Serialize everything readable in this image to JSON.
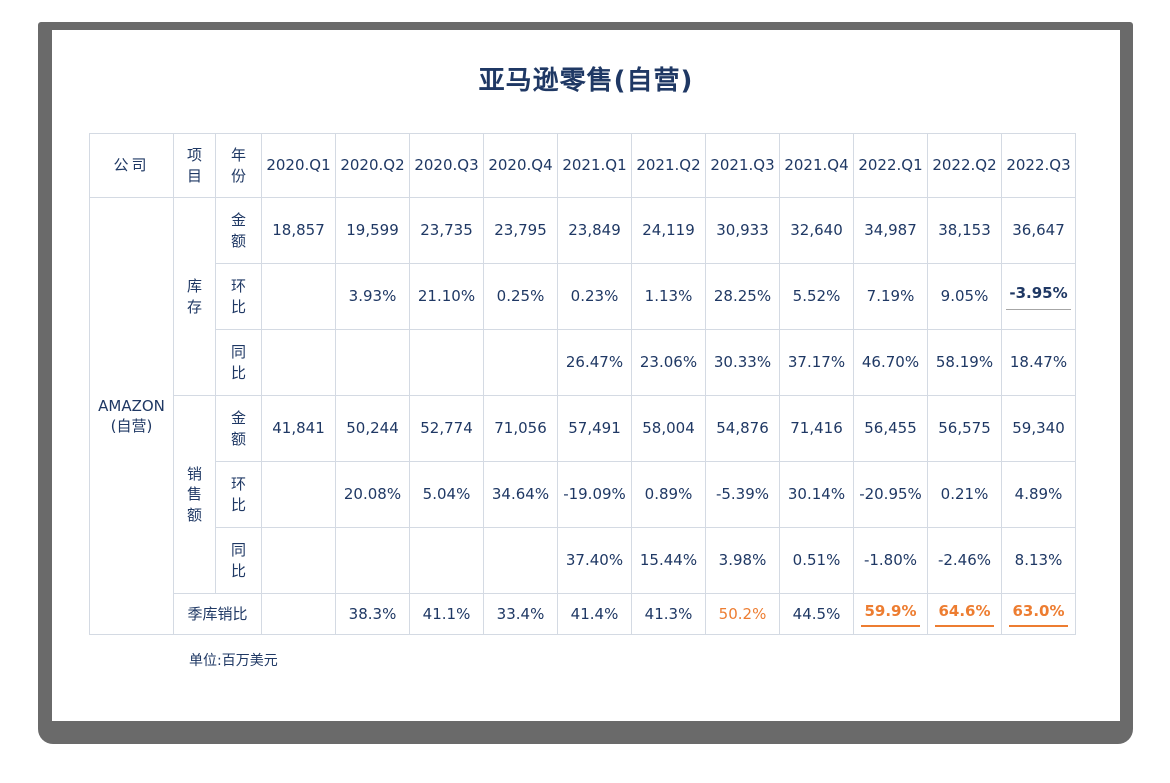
{
  "page": {
    "title": "亚马逊零售(自营)",
    "footer_note": "单位:百万美元"
  },
  "colors": {
    "text_navy": "#1f3864",
    "accent_orange": "#ed7d31",
    "table_border": "#d4dae3",
    "frame_gray": "#6a6a6a",
    "underline_gray": "#a6a6a6"
  },
  "table": {
    "header": {
      "company": "公司",
      "item": "项\n目",
      "year": "年\n份",
      "quarters": [
        "2020.Q1",
        "2020.Q2",
        "2020.Q3",
        "2020.Q4",
        "2021.Q1",
        "2021.Q2",
        "2021.Q3",
        "2021.Q4",
        "2022.Q1",
        "2022.Q2",
        "2022.Q3"
      ]
    },
    "company": "AMAZON\n(自营)",
    "sections": [
      {
        "label": "库\n存",
        "rows": [
          {
            "metric": "金\n额",
            "cells": [
              {
                "t": "18,857"
              },
              {
                "t": "19,599"
              },
              {
                "t": "23,735"
              },
              {
                "t": "23,795"
              },
              {
                "t": "23,849"
              },
              {
                "t": "24,119"
              },
              {
                "t": "30,933"
              },
              {
                "t": "32,640"
              },
              {
                "t": "34,987"
              },
              {
                "t": "38,153"
              },
              {
                "t": "36,647"
              }
            ]
          },
          {
            "metric": "环\n比",
            "cells": [
              {
                "t": ""
              },
              {
                "t": "3.93%"
              },
              {
                "t": "21.10%"
              },
              {
                "t": "0.25%"
              },
              {
                "t": "0.23%"
              },
              {
                "t": "1.13%"
              },
              {
                "t": "28.25%"
              },
              {
                "t": "5.52%"
              },
              {
                "t": "7.19%"
              },
              {
                "t": "9.05%"
              },
              {
                "t": "-3.95%",
                "bold": true,
                "underline": "gray"
              }
            ]
          },
          {
            "metric": "同\n比",
            "cells": [
              {
                "t": ""
              },
              {
                "t": ""
              },
              {
                "t": ""
              },
              {
                "t": ""
              },
              {
                "t": "26.47%"
              },
              {
                "t": "23.06%"
              },
              {
                "t": "30.33%"
              },
              {
                "t": "37.17%"
              },
              {
                "t": "46.70%"
              },
              {
                "t": "58.19%"
              },
              {
                "t": "18.47%",
                "bold": true
              }
            ]
          }
        ]
      },
      {
        "label": "销\n售\n额",
        "rows": [
          {
            "metric": "金\n额",
            "cells": [
              {
                "t": "41,841"
              },
              {
                "t": "50,244"
              },
              {
                "t": "52,774"
              },
              {
                "t": "71,056"
              },
              {
                "t": "57,491"
              },
              {
                "t": "58,004"
              },
              {
                "t": "54,876"
              },
              {
                "t": "71,416"
              },
              {
                "t": "56,455"
              },
              {
                "t": "56,575"
              },
              {
                "t": "59,340"
              }
            ]
          },
          {
            "metric": "环\n比",
            "cells": [
              {
                "t": ""
              },
              {
                "t": "20.08%"
              },
              {
                "t": "5.04%"
              },
              {
                "t": "34.64%"
              },
              {
                "t": "-19.09%"
              },
              {
                "t": "0.89%"
              },
              {
                "t": "-5.39%"
              },
              {
                "t": "30.14%"
              },
              {
                "t": "-20.95%"
              },
              {
                "t": "0.21%"
              },
              {
                "t": "4.89%"
              }
            ]
          },
          {
            "metric": "同\n比",
            "cells": [
              {
                "t": ""
              },
              {
                "t": ""
              },
              {
                "t": ""
              },
              {
                "t": ""
              },
              {
                "t": "37.40%"
              },
              {
                "t": "15.44%"
              },
              {
                "t": "3.98%"
              },
              {
                "t": "0.51%"
              },
              {
                "t": "-1.80%"
              },
              {
                "t": "-2.46%"
              },
              {
                "t": "8.13%"
              }
            ]
          }
        ]
      }
    ],
    "summary": {
      "label": "季库销比",
      "cells": [
        {
          "t": ""
        },
        {
          "t": "38.3%"
        },
        {
          "t": "41.1%"
        },
        {
          "t": "33.4%"
        },
        {
          "t": "41.4%"
        },
        {
          "t": "41.3%"
        },
        {
          "t": "50.2%",
          "color": "orange",
          "bold": true
        },
        {
          "t": "44.5%"
        },
        {
          "t": "59.9%",
          "color": "orange",
          "bold": true,
          "underline": "orange"
        },
        {
          "t": "64.6%",
          "color": "orange",
          "bold": true,
          "underline": "orange"
        },
        {
          "t": "63.0%",
          "color": "orange",
          "bold": true,
          "underline": "orange"
        }
      ]
    }
  },
  "chart_data": {
    "type": "table",
    "title": "亚马逊零售(自营)",
    "unit_note": "单位:百万美元 (Unit: USD millions)",
    "categories": [
      "2020.Q1",
      "2020.Q2",
      "2020.Q3",
      "2020.Q4",
      "2021.Q1",
      "2021.Q2",
      "2021.Q3",
      "2021.Q4",
      "2022.Q1",
      "2022.Q2",
      "2022.Q3"
    ],
    "company": "AMAZON (自营)",
    "series": [
      {
        "name": "库存-金额",
        "unit": "USD million",
        "values": [
          18857,
          19599,
          23735,
          23795,
          23849,
          24119,
          30933,
          32640,
          34987,
          38153,
          36647
        ]
      },
      {
        "name": "库存-环比",
        "unit": "%",
        "values": [
          null,
          3.93,
          21.1,
          0.25,
          0.23,
          1.13,
          28.25,
          5.52,
          7.19,
          9.05,
          -3.95
        ]
      },
      {
        "name": "库存-同比",
        "unit": "%",
        "values": [
          null,
          null,
          null,
          null,
          26.47,
          23.06,
          30.33,
          37.17,
          46.7,
          58.19,
          18.47
        ]
      },
      {
        "name": "销售额-金额",
        "unit": "USD million",
        "values": [
          41841,
          50244,
          52774,
          71056,
          57491,
          58004,
          54876,
          71416,
          56455,
          56575,
          59340
        ]
      },
      {
        "name": "销售额-环比",
        "unit": "%",
        "values": [
          null,
          20.08,
          5.04,
          34.64,
          -19.09,
          0.89,
          -5.39,
          30.14,
          -20.95,
          0.21,
          4.89
        ]
      },
      {
        "name": "销售额-同比",
        "unit": "%",
        "values": [
          null,
          null,
          null,
          null,
          37.4,
          15.44,
          3.98,
          0.51,
          -1.8,
          -2.46,
          8.13
        ]
      },
      {
        "name": "季库销比",
        "unit": "%",
        "values": [
          null,
          38.3,
          41.1,
          33.4,
          41.4,
          41.3,
          50.2,
          44.5,
          59.9,
          64.6,
          63.0
        ]
      }
    ],
    "highlights": {
      "orange_values": [
        "季库销比 2021.Q3 50.2%",
        "季库销比 2022.Q1 59.9%",
        "季库销比 2022.Q2 64.6%",
        "季库销比 2022.Q3 63.0%"
      ],
      "underlined_values": [
        "库存-环比 2022.Q3 -3.95%",
        "季库销比 2022.Q1 59.9%",
        "季库销比 2022.Q2 64.6%",
        "季库销比 2022.Q3 63.0%"
      ],
      "bold_values": [
        "库存-环比 2022.Q3 -3.95%",
        "库存-同比 2022.Q3 18.47%"
      ]
    }
  }
}
